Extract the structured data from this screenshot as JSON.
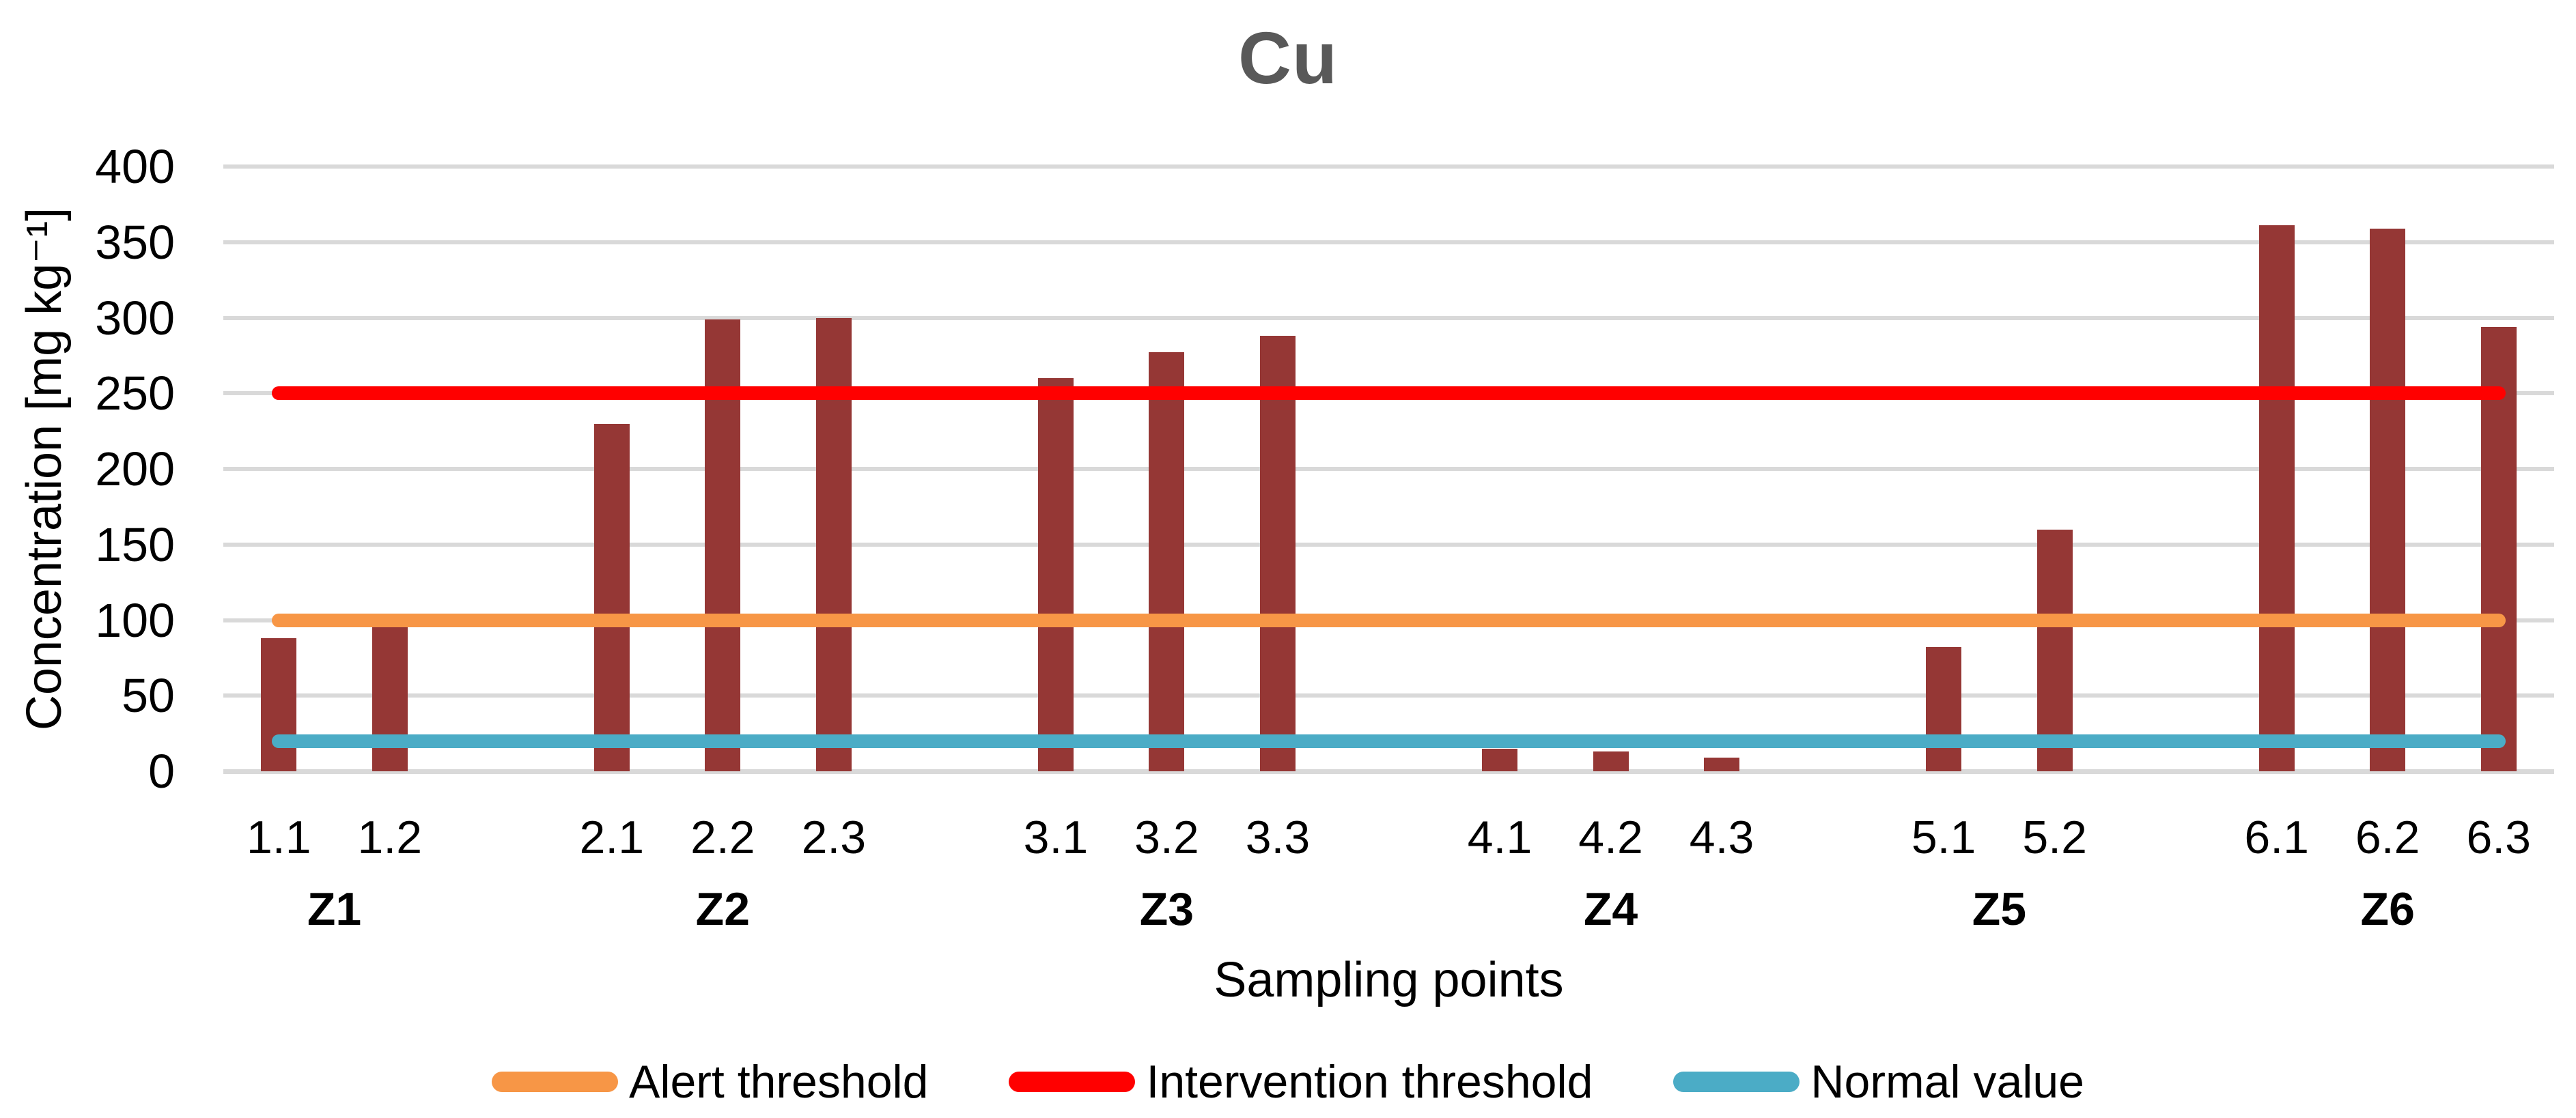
{
  "title": "Cu",
  "y_axis": {
    "title": "Concentration [mg kg⁻¹]",
    "ticks": [
      "0",
      "50",
      "100",
      "150",
      "200",
      "250",
      "300",
      "350",
      "400"
    ]
  },
  "x_axis": {
    "title": "Sampling points"
  },
  "legend": [
    {
      "label": "Alert threshold",
      "color": "#F79646"
    },
    {
      "label": "Intervention threshold",
      "color": "#FF0000"
    },
    {
      "label": "Normal value",
      "color": "#4BACC6"
    }
  ],
  "colors": {
    "bar": "#953735",
    "gridline": "#D9D9D9",
    "title_text": "#595959",
    "alert": "#F79646",
    "intervention": "#FF0000",
    "normal": "#4BACC6"
  },
  "chart_data": {
    "type": "bar",
    "title": "Cu",
    "xlabel": "Sampling points",
    "ylabel": "Concentration [mg kg-1]",
    "ylim": [
      0,
      400
    ],
    "ytick_step": 50,
    "grid": true,
    "legend_position": "bottom",
    "bar_color": "#953735",
    "groups": [
      {
        "name": "Z1",
        "points": [
          {
            "label": "1.1",
            "value": 88
          },
          {
            "label": "1.2",
            "value": 103
          }
        ]
      },
      {
        "name": "Z2",
        "points": [
          {
            "label": "2.1",
            "value": 230
          },
          {
            "label": "2.2",
            "value": 299
          },
          {
            "label": "2.3",
            "value": 300
          }
        ]
      },
      {
        "name": "Z3",
        "points": [
          {
            "label": "3.1",
            "value": 260
          },
          {
            "label": "3.2",
            "value": 277
          },
          {
            "label": "3.3",
            "value": 288
          }
        ]
      },
      {
        "name": "Z4",
        "points": [
          {
            "label": "4.1",
            "value": 15
          },
          {
            "label": "4.2",
            "value": 13
          },
          {
            "label": "4.3",
            "value": 9
          }
        ]
      },
      {
        "name": "Z5",
        "points": [
          {
            "label": "5.1",
            "value": 82
          },
          {
            "label": "5.2",
            "value": 160
          }
        ]
      },
      {
        "name": "Z6",
        "points": [
          {
            "label": "6.1",
            "value": 361
          },
          {
            "label": "6.2",
            "value": 359
          },
          {
            "label": "6.3",
            "value": 294
          }
        ]
      }
    ],
    "reference_lines": [
      {
        "label": "Alert threshold",
        "value": 100,
        "color": "#F79646"
      },
      {
        "label": "Intervention threshold",
        "value": 250,
        "color": "#FF0000"
      },
      {
        "label": "Normal value",
        "value": 20,
        "color": "#4BACC6"
      }
    ]
  }
}
